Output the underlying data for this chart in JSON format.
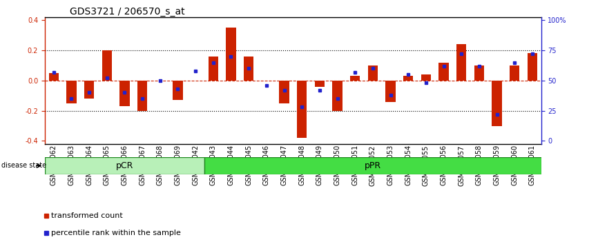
{
  "title": "GDS3721 / 206570_s_at",
  "samples": [
    "GSM559062",
    "GSM559063",
    "GSM559064",
    "GSM559065",
    "GSM559066",
    "GSM559067",
    "GSM559068",
    "GSM559069",
    "GSM559042",
    "GSM559043",
    "GSM559044",
    "GSM559045",
    "GSM559046",
    "GSM559047",
    "GSM559048",
    "GSM559049",
    "GSM559050",
    "GSM559051",
    "GSM559052",
    "GSM559053",
    "GSM559054",
    "GSM559055",
    "GSM559056",
    "GSM559057",
    "GSM559058",
    "GSM559059",
    "GSM559060",
    "GSM559061"
  ],
  "red_values": [
    0.05,
    -0.15,
    -0.12,
    0.2,
    -0.17,
    -0.2,
    0.0,
    -0.13,
    0.0,
    0.16,
    0.35,
    0.16,
    0.0,
    -0.15,
    -0.38,
    -0.04,
    -0.2,
    0.03,
    0.1,
    -0.14,
    0.03,
    0.04,
    0.12,
    0.24,
    0.1,
    -0.3,
    0.1,
    0.18
  ],
  "blue_values": [
    57,
    35,
    40,
    52,
    40,
    35,
    50,
    43,
    58,
    65,
    70,
    60,
    46,
    42,
    28,
    42,
    35,
    57,
    60,
    38,
    55,
    48,
    62,
    72,
    62,
    22,
    65,
    72
  ],
  "pCR_count": 9,
  "pPR_count": 19,
  "ylim": [
    -0.42,
    0.42
  ],
  "yticks_left": [
    -0.4,
    -0.2,
    0.0,
    0.2,
    0.4
  ],
  "right_yticks": [
    0,
    25,
    50,
    75,
    100
  ],
  "right_ylabels": [
    "0",
    "25",
    "50",
    "75",
    "100%"
  ],
  "bar_color": "#cc2200",
  "dot_color": "#2222cc",
  "bar_width": 0.55,
  "pcr_color": "#b8f0b8",
  "ppr_color": "#44dd44",
  "pcr_label": "pCR",
  "ppr_label": "pPR",
  "disease_label": "disease state",
  "legend_red": "transformed count",
  "legend_blue": "percentile rank within the sample",
  "title_fontsize": 10,
  "tick_fontsize": 7,
  "label_fontsize": 8
}
